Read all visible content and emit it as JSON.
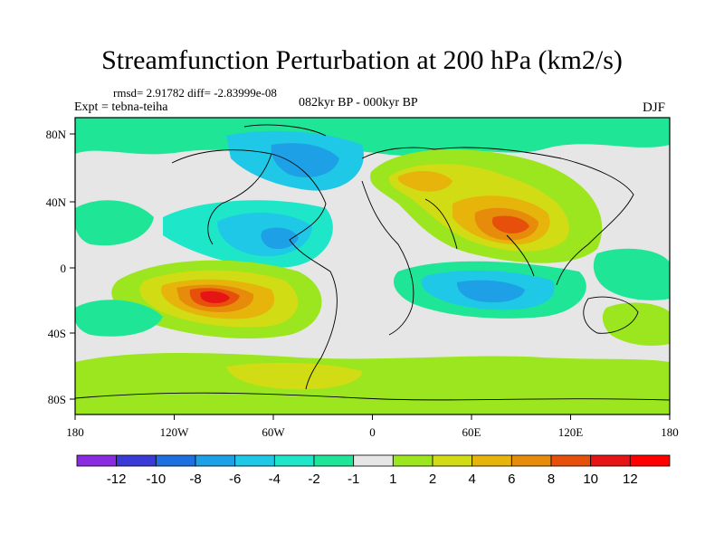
{
  "title": "Streamfunction Perturbation at 200 hPa (km2/s)",
  "stats": "rmsd= 2.91782 diff= -2.83999e-08",
  "expt": "Expt = tebna-teiha",
  "period": "082kyr BP - 000kyr BP",
  "season": "DJF",
  "lat_ticks": [
    "80N",
    "40N",
    "0",
    "40S",
    "80S"
  ],
  "lon_ticks": [
    "180",
    "120W",
    "60W",
    "0",
    "60E",
    "120E",
    "180"
  ],
  "colorbar": {
    "labels": [
      "-12",
      "-10",
      "-8",
      "-6",
      "-4",
      "-2",
      "-1",
      "1",
      "2",
      "4",
      "6",
      "8",
      "10",
      "12"
    ],
    "colors": [
      "#8a2be2",
      "#3a3ad6",
      "#1e6fe0",
      "#1ea0e6",
      "#1ec8e6",
      "#1ee6c8",
      "#1ee696",
      "#e6e6e6",
      "#9be61e",
      "#d2dc14",
      "#e6b40a",
      "#e68c0a",
      "#e6500a",
      "#e61414",
      "#ff0000"
    ]
  }
}
